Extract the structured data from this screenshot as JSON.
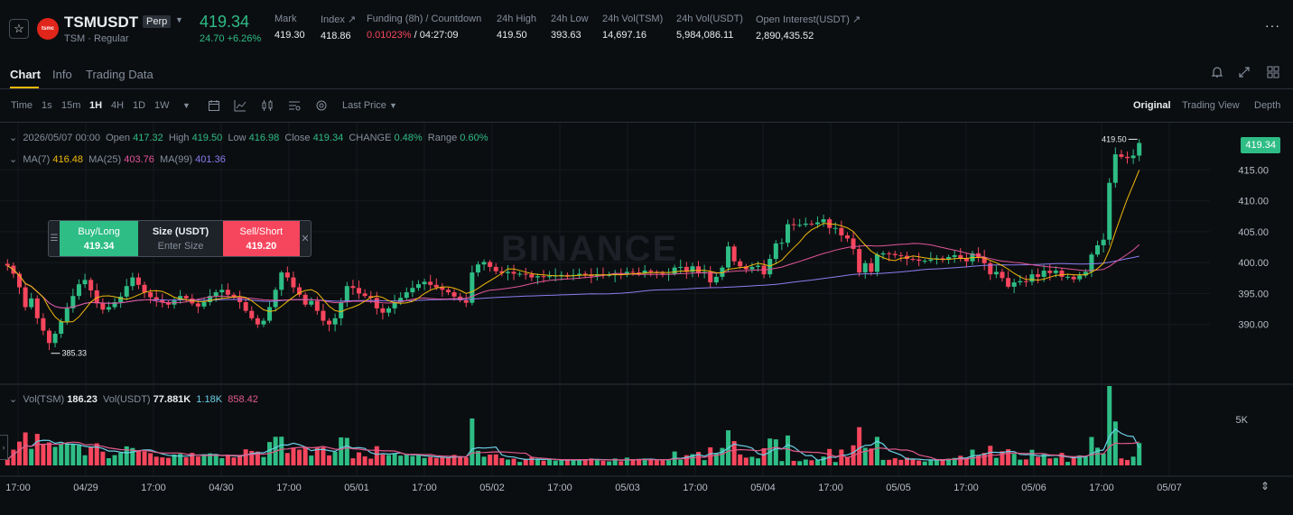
{
  "header": {
    "symbol": "TSMUSDT",
    "perp_badge": "Perp",
    "subtitle": "TSM · Regular",
    "logo_text": "tsmc",
    "last_price": "419.34",
    "change": "24.70 +6.26%",
    "stats": [
      {
        "label": "Mark",
        "value": "419.30"
      },
      {
        "label": "Index ↗",
        "value": "418.86"
      },
      {
        "label": "Funding (8h) / Countdown",
        "value_rate": "0.01023%",
        "value_sep": " / ",
        "value_countdown": "04:27:09"
      },
      {
        "label": "24h High",
        "value": "419.50"
      },
      {
        "label": "24h Low",
        "value": "393.63"
      },
      {
        "label": "24h Vol(TSM)",
        "value": "14,697.16"
      },
      {
        "label": "24h Vol(USDT)",
        "value": "5,984,086.11"
      },
      {
        "label": "Open Interest(USDT) ↗",
        "value": "2,890,435.52"
      }
    ]
  },
  "tabs": [
    "Chart",
    "Info",
    "Trading Data"
  ],
  "toolbar": {
    "intervals": [
      "Time",
      "1s",
      "15m",
      "1H",
      "4H",
      "1D",
      "1W"
    ],
    "active_interval": "1H",
    "price_type": "Last Price",
    "views": [
      "Original",
      "Trading View",
      "Depth"
    ],
    "active_view": "Original"
  },
  "legend": {
    "date": "2026/05/07 00:00",
    "open_l": "Open",
    "open": "417.32",
    "high_l": "High",
    "high": "419.50",
    "low_l": "Low",
    "low": "416.98",
    "close_l": "Close",
    "close": "419.34",
    "change_l": "CHANGE",
    "change": "0.48%",
    "range_l": "Range",
    "range": "0.60%",
    "ma7_l": "MA(7)",
    "ma7": "416.48",
    "ma25_l": "MA(25)",
    "ma25": "403.76",
    "ma99_l": "MA(99)",
    "ma99": "401.36"
  },
  "volume_legend": {
    "l1": "Vol(TSM)",
    "v1": "186.23",
    "l2": "Vol(USDT)",
    "v2": "77.881K",
    "v3": "1.18K",
    "v4": "858.42"
  },
  "order_panel": {
    "buy_label": "Buy/Long",
    "buy_price": "419.34",
    "size_label": "Size (USDT)",
    "size_placeholder": "Enter Size",
    "sell_label": "Sell/Short",
    "sell_price": "419.20"
  },
  "watermark": "BINANCE",
  "colors": {
    "up": "#2ebd85",
    "down": "#f6465d",
    "ma7": "#f0b90b",
    "ma25": "#e0559a",
    "ma99": "#8e7cf0",
    "vma1": "#6ad0e6",
    "vma2": "#e05a8a"
  },
  "chart_data": {
    "type": "candlestick",
    "price_axis": [
      "415.00",
      "410.00",
      "405.00",
      "400.00",
      "395.00",
      "390.00"
    ],
    "ylim": [
      385,
      420
    ],
    "volume_axis": [
      "5K"
    ],
    "time_axis": [
      "17:00",
      "04/29",
      "17:00",
      "04/30",
      "17:00",
      "05/01",
      "17:00",
      "05/02",
      "17:00",
      "05/03",
      "17:00",
      "05/04",
      "17:00",
      "05/05",
      "17:00",
      "05/06",
      "17:00",
      "05/07"
    ],
    "current_price": "419.34",
    "high_marker": "419.50",
    "low_marker": "385.33",
    "closes": [
      399.5,
      398.2,
      396,
      392.8,
      394.2,
      391,
      389,
      387,
      388.5,
      390.5,
      392.6,
      394.6,
      396.5,
      397.2,
      395.5,
      393.4,
      392.4,
      392.8,
      393.6,
      394.5,
      396.2,
      397.6,
      396.4,
      395.2,
      394.4,
      394,
      393.6,
      393.2,
      393.9,
      394.6,
      394.2,
      393.4,
      392.9,
      393.6,
      394.6,
      395.2,
      395.6,
      394.8,
      394.4,
      393.6,
      392.2,
      391,
      390,
      390.6,
      392.8,
      395.6,
      398.4,
      397.6,
      396,
      394.8,
      393.2,
      393.8,
      392.2,
      390.6,
      390,
      391,
      393.6,
      396.2,
      395.9,
      395,
      394.6,
      394.3,
      392.6,
      391.9,
      392.6,
      393.6,
      394.3,
      395.2,
      395.9,
      396.5,
      396.9,
      396.4,
      396,
      395.6,
      395.2,
      394.5,
      393.9,
      393.5,
      398.4,
      399.7,
      400.1,
      399.3,
      398.6,
      398.3,
      398.5,
      398.2,
      398.2,
      398.1,
      397.6,
      397.8,
      397.7,
      397.8,
      397.9,
      398,
      397.9,
      398,
      398.2,
      398.1,
      397.8,
      398.1,
      398,
      398,
      398.2,
      398.1,
      398.5,
      398.4,
      398.3,
      398.7,
      398.5,
      398.3,
      398.2,
      398.2,
      399.2,
      399.3,
      398.5,
      399.4,
      398.3,
      398.5,
      396.8,
      397.7,
      399.2,
      402.6,
      400.2,
      399.4,
      398.9,
      399.3,
      399.5,
      398.1,
      400.6,
      403.1,
      403.2,
      406.2,
      406.1,
      406.1,
      406.3,
      406.2,
      406.5,
      407,
      405.6,
      405.6,
      404.4,
      403.9,
      402.2,
      398.4,
      399.9,
      398.5,
      401.3,
      401.5,
      401.4,
      401.2,
      401.1,
      400.6,
      400.5,
      400.3,
      400.3,
      400.5,
      400.7,
      400.5,
      400.9,
      401.2,
      400.7,
      400.2,
      401.5,
      400.9,
      399.9,
      398.1,
      398.5,
      397.5,
      396.1,
      396.8,
      397,
      396.9,
      398.1,
      397.7,
      398.7,
      398.3,
      398.7,
      397.7,
      397.7,
      397.3,
      397.9,
      398.5,
      401.3,
      402.8,
      403.7,
      412.9,
      417.5,
      417.1,
      416.9,
      417.3,
      419.34
    ],
    "volume_series": [
      "Vol(TSM)",
      "Vol(USDT)"
    ]
  }
}
